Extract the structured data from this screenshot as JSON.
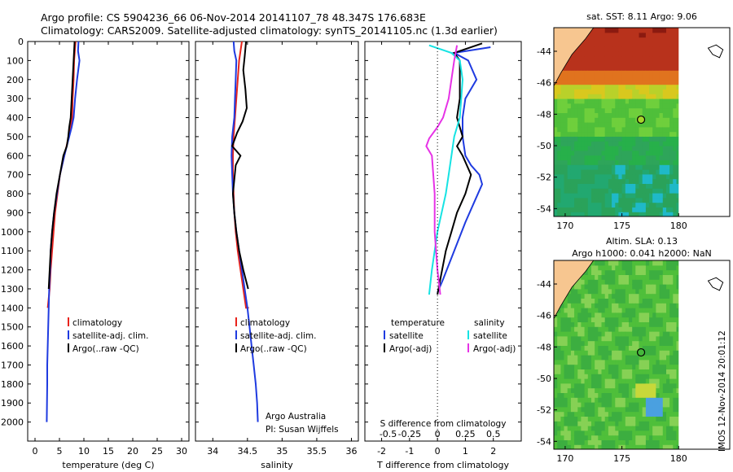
{
  "title_line1": "Argo profile: CS 5904236_66 06-Nov-2014 20141107_78 48.347S 176.683E",
  "title_line2": "Climatology: CARS2009. Satellite-adjusted climatology: synTS_20141105.nc (1.3d earlier)",
  "colors": {
    "climatology": "#e8231b",
    "satellite": "#1f3be0",
    "argo": "#000000",
    "sat_salinity": "#16e3e3",
    "argo_salinity": "#e632e6",
    "land": "#f7c690"
  },
  "chart_data": [
    {
      "type": "line",
      "name": "temperature",
      "xlabel": "temperature (deg C)",
      "ylabel": "",
      "xlim": [
        -1.5,
        31.5
      ],
      "ylim": [
        0,
        2100
      ],
      "y_reversed": true,
      "xticks": [
        "0",
        "5",
        "10",
        "15",
        "20",
        "25",
        "30"
      ],
      "xtick_values": [
        0,
        5,
        10,
        15,
        20,
        25,
        30
      ],
      "yticks": [
        "0",
        "100",
        "200",
        "300",
        "400",
        "500",
        "600",
        "700",
        "800",
        "900",
        "1000",
        "1100",
        "1200",
        "1300",
        "1400",
        "1500",
        "1600",
        "1700",
        "1800",
        "1900",
        "2000"
      ],
      "ytick_values": [
        0,
        100,
        200,
        300,
        400,
        500,
        600,
        700,
        800,
        900,
        1000,
        1100,
        1200,
        1300,
        1400,
        1500,
        1600,
        1700,
        1800,
        1900,
        2000
      ],
      "legend": [
        "climatology",
        "satellite-adj. clim.",
        "Argo(..raw -QC)"
      ],
      "series": [
        {
          "name": "climatology",
          "color_key": "climatology",
          "x": [
            8.3,
            8.0,
            7.9,
            7.7,
            7.6,
            7.3,
            6.9,
            6.0,
            5.1,
            4.6,
            4.1,
            3.8,
            3.5,
            3.2,
            3.0,
            2.8,
            2.6
          ],
          "y": [
            0,
            100,
            200,
            300,
            400,
            450,
            500,
            600,
            700,
            800,
            900,
            1000,
            1100,
            1200,
            1300,
            1350,
            1400
          ]
        },
        {
          "name": "satellite-adj. clim.",
          "color_key": "satellite",
          "x": [
            8.9,
            8.8,
            9.1,
            8.6,
            8.2,
            7.9,
            7.5,
            7.0,
            6.0,
            5.1,
            4.5,
            3.9,
            3.5,
            3.2,
            3.1,
            2.9,
            2.8,
            2.7,
            2.6,
            2.5,
            2.5,
            2.4
          ],
          "y": [
            0,
            50,
            100,
            200,
            300,
            400,
            450,
            500,
            600,
            700,
            800,
            900,
            1000,
            1100,
            1200,
            1300,
            1400,
            1500,
            1600,
            1700,
            1800,
            2000
          ]
        },
        {
          "name": "Argo(..raw -QC)",
          "color_key": "argo",
          "x": [
            8.1,
            7.9,
            7.7,
            7.5,
            7.3,
            7.0,
            6.8,
            6.5,
            5.8,
            5.1,
            4.4,
            3.9,
            3.5,
            3.2,
            3.0,
            2.8
          ],
          "y": [
            0,
            100,
            200,
            300,
            400,
            450,
            500,
            550,
            600,
            700,
            800,
            900,
            1000,
            1100,
            1200,
            1300
          ]
        }
      ]
    },
    {
      "type": "line",
      "name": "salinity",
      "xlabel": "salinity",
      "xlim": [
        33.75,
        36.1
      ],
      "ylim": [
        0,
        2100
      ],
      "y_reversed": true,
      "xticks": [
        "34",
        "34.5",
        "35",
        "35.5",
        "36"
      ],
      "xtick_values": [
        34,
        34.5,
        35,
        35.5,
        36
      ],
      "legend": [
        "climatology",
        "satellite-adj. clim.",
        "Argo(..raw -QC)"
      ],
      "annotation": [
        "Argo Australia",
        "PI: Susan Wijffels"
      ],
      "series": [
        {
          "name": "climatology",
          "color_key": "climatology",
          "x": [
            34.42,
            34.38,
            34.36,
            34.34,
            34.32,
            34.3,
            34.29,
            34.29,
            34.3,
            34.31,
            34.33,
            34.36,
            34.4,
            34.44,
            34.48,
            34.52
          ],
          "y": [
            0,
            100,
            200,
            300,
            400,
            500,
            600,
            700,
            800,
            900,
            1000,
            1100,
            1200,
            1300,
            1400,
            1400
          ]
        },
        {
          "name": "satellite-adj. clim.",
          "color_key": "satellite",
          "x": [
            34.3,
            34.31,
            34.34,
            34.33,
            34.32,
            34.31,
            34.28,
            34.27,
            34.28,
            34.29,
            34.31,
            34.34,
            34.38,
            34.42,
            34.46,
            34.5,
            34.53,
            34.56,
            34.59,
            34.62,
            34.64,
            34.65
          ],
          "y": [
            0,
            50,
            100,
            200,
            300,
            400,
            500,
            600,
            700,
            800,
            900,
            1000,
            1100,
            1200,
            1300,
            1400,
            1500,
            1600,
            1700,
            1800,
            1900,
            2000
          ]
        },
        {
          "name": "Argo(..raw -QC)",
          "color_key": "argo",
          "x": [
            34.48,
            34.46,
            34.44,
            34.47,
            34.49,
            34.43,
            34.35,
            34.28,
            34.4,
            34.33,
            34.29,
            34.31,
            34.34,
            34.38,
            34.44,
            34.51
          ],
          "y": [
            0,
            80,
            150,
            250,
            350,
            420,
            480,
            550,
            600,
            650,
            800,
            900,
            1000,
            1100,
            1200,
            1300
          ]
        }
      ]
    },
    {
      "type": "line",
      "name": "difference",
      "xlabel": "T difference from climatology",
      "xlabel_top": "S difference from climatology",
      "xlim": [
        -2.6,
        3.0
      ],
      "ylim": [
        0,
        2100
      ],
      "y_reversed": true,
      "xticks": [
        "-2",
        "-1",
        "0",
        "1",
        "2"
      ],
      "xtick_values": [
        -2,
        -1,
        0,
        1,
        2
      ],
      "xticks_top": [
        "-0.5",
        "-0.25",
        "0",
        "0.25",
        "0.5"
      ],
      "xtick_top_values": [
        -2,
        -1,
        0,
        1,
        2
      ],
      "legend_temperature": [
        "temperature",
        "satellite",
        "Argo(-adj)"
      ],
      "legend_salinity": [
        "salinity",
        "satellite",
        "Argo(-adj)"
      ],
      "series": [
        {
          "name": "T satellite",
          "color_key": "satellite",
          "x": [
            1.9,
            0.6,
            1.1,
            1.4,
            1.0,
            0.9,
            0.9,
            1.0,
            1.2,
            1.5,
            1.6,
            1.3,
            1.0,
            0.6,
            0.2,
            0.0
          ],
          "y": [
            30,
            60,
            100,
            200,
            300,
            400,
            500,
            600,
            650,
            700,
            750,
            850,
            950,
            1100,
            1250,
            1320
          ]
        },
        {
          "name": "T Argo(-adj)",
          "color_key": "argo",
          "x": [
            1.6,
            0.6,
            0.8,
            0.8,
            0.7,
            0.9,
            0.7,
            0.9,
            1.2,
            1.0,
            0.7,
            0.5,
            0.3,
            0.1,
            0.0
          ],
          "y": [
            10,
            60,
            100,
            300,
            400,
            500,
            550,
            600,
            700,
            800,
            900,
            1000,
            1100,
            1250,
            1330
          ]
        },
        {
          "name": "S satellite",
          "color_key": "sat_salinity",
          "x": [
            -0.3,
            0.5,
            0.8,
            0.9,
            0.8,
            0.6,
            0.5,
            0.4,
            0.3,
            0.0,
            -0.2,
            -0.3
          ],
          "y": [
            20,
            60,
            100,
            200,
            400,
            500,
            600,
            700,
            800,
            1000,
            1200,
            1330
          ]
        },
        {
          "name": "S Argo(-adj)",
          "color_key": "argo_salinity",
          "x": [
            0.7,
            0.6,
            0.5,
            0.4,
            0.2,
            0.0,
            -0.3,
            -0.4,
            -0.2,
            -0.1,
            -0.1,
            0.0,
            0.1
          ],
          "y": [
            20,
            100,
            200,
            300,
            400,
            450,
            510,
            550,
            600,
            800,
            1000,
            1200,
            1330
          ]
        }
      ]
    },
    {
      "type": "heatmap",
      "name": "sst_map",
      "title": "sat. SST: 8.11 Argo: 9.06",
      "xticks": [
        "170",
        "175",
        "180"
      ],
      "xtick_values": [
        170,
        175,
        180
      ],
      "yticks": [
        "-44",
        "-46",
        "-48",
        "-50",
        "-52",
        "-54"
      ],
      "ytick_values": [
        -44,
        -46,
        -48,
        -50,
        -52,
        -54
      ],
      "xlim": [
        169,
        184.5
      ],
      "ylim": [
        -54.5,
        -42.5
      ],
      "argo_position": [
        176.683,
        -48.347
      ]
    },
    {
      "type": "heatmap",
      "name": "sla_map",
      "title_line1": "Altim. SLA: 0.13",
      "title_line2": "Argo h1000: 0.041 h2000: NaN",
      "xticks": [
        "170",
        "175",
        "180"
      ],
      "xtick_values": [
        170,
        175,
        180
      ],
      "yticks": [
        "-44",
        "-46",
        "-48",
        "-50",
        "-52",
        "-54"
      ],
      "ytick_values": [
        -44,
        -46,
        -48,
        -50,
        -52,
        -54
      ],
      "xlim": [
        169,
        184.5
      ],
      "ylim": [
        -54.5,
        -42.5
      ],
      "argo_position": [
        176.683,
        -48.347
      ]
    }
  ],
  "watermark": "IMOS 12-Nov-2014 20:01:12"
}
